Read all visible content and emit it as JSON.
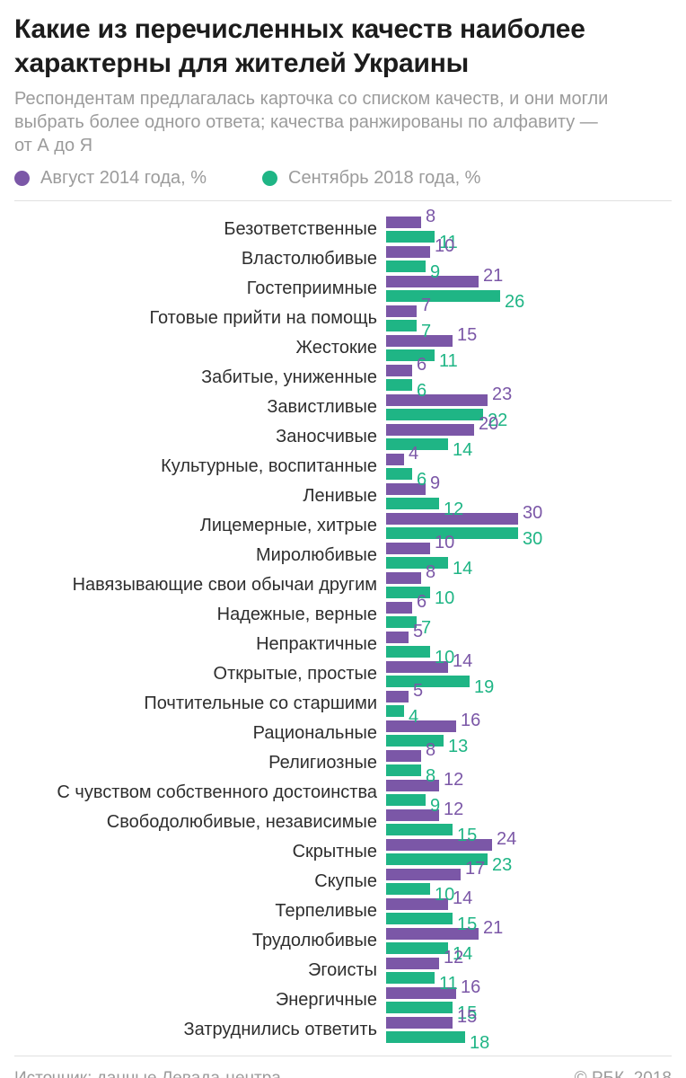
{
  "header": {
    "title": "Какие из перечисленных качеств наиболее характерны для жителей Украины",
    "subtitle": "Респондентам предлагалась карточка со списком качеств, и они могли выбрать более одного ответа; качества ранжированы по алфавиту — от А до Я"
  },
  "legend": {
    "items": [
      {
        "label": "Август 2014 года, %",
        "color": "#7b57a7"
      },
      {
        "label": "Сентябрь 2018 года, %",
        "color": "#1fb585"
      }
    ]
  },
  "chart_data": {
    "type": "bar",
    "orientation": "horizontal",
    "title": "Какие из перечисленных качеств наиболее характерны для жителей Украины",
    "xlabel": "",
    "ylabel": "",
    "xlim": [
      0,
      30
    ],
    "grid": false,
    "legend_position": "top",
    "value_labels": true,
    "categories": [
      "Безответственные",
      "Властолюбивые",
      "Гостеприимные",
      "Готовые прийти на помощь",
      "Жестокие",
      "Забитые, униженные",
      "Завистливые",
      "Заносчивые",
      "Культурные, воспитанные",
      "Ленивые",
      "Лицемерные, хитрые",
      "Миролюбивые",
      "Навязывающие свои обычаи другим",
      "Надежные, верные",
      "Непрактичные",
      "Открытые, простые",
      "Почтительные со старшими",
      "Рациональные",
      "Религиозные",
      "С чувством собственного достоинства",
      "Свободолюбивые, независимые",
      "Скрытные",
      "Скупые",
      "Терпеливые",
      "Трудолюбивые",
      "Эгоисты",
      "Энергичные",
      "Затруднились ответить"
    ],
    "series": [
      {
        "name": "Август 2014 года, %",
        "color": "#7b57a7",
        "values": [
          8,
          10,
          21,
          7,
          15,
          6,
          23,
          20,
          4,
          9,
          30,
          10,
          8,
          6,
          5,
          14,
          5,
          16,
          8,
          12,
          12,
          24,
          17,
          14,
          21,
          12,
          16,
          15
        ]
      },
      {
        "name": "Сентябрь 2018 года, %",
        "color": "#1fb585",
        "values": [
          11,
          9,
          26,
          7,
          11,
          6,
          22,
          14,
          6,
          12,
          30,
          14,
          10,
          7,
          10,
          19,
          4,
          13,
          8,
          9,
          15,
          23,
          10,
          15,
          14,
          11,
          15,
          18
        ]
      }
    ]
  },
  "footer": {
    "source": "Источник: данные Левада-центра",
    "copyright": "© РБК, 2018"
  }
}
